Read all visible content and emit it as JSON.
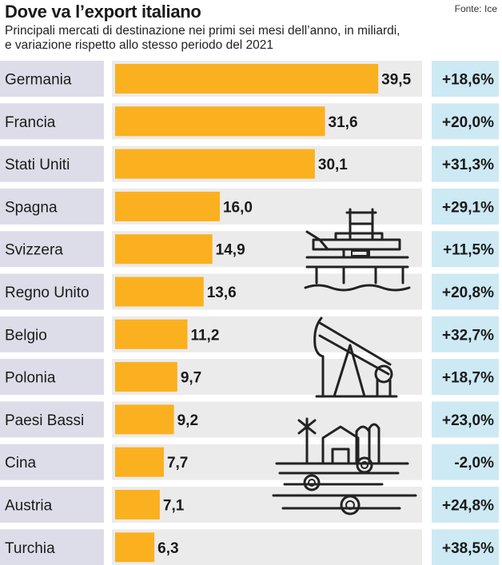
{
  "header": {
    "title": "Dove va l’export italiano",
    "source": "Fonte: Ice",
    "subtitle_line1": "Principali mercati di destinazione nei primi sei mesi dell’anno, in miliardi,",
    "subtitle_line2": "e variazione rispetto allo stesso periodo del 2021"
  },
  "colors": {
    "bar": "#fbb01f",
    "track": "#ebebeb",
    "label_bg": "#dddde9",
    "pct_bg": "#cde9f4"
  },
  "chart_data": {
    "type": "bar",
    "orientation": "horizontal",
    "categories": [
      "Germania",
      "Francia",
      "Stati Uniti",
      "Spagna",
      "Svizzera",
      "Regno Unito",
      "Belgio",
      "Polonia",
      "Paesi Bassi",
      "Cina",
      "Austria",
      "Turchia"
    ],
    "values": [
      39.5,
      31.6,
      30.1,
      16.0,
      14.9,
      13.6,
      11.2,
      9.7,
      9.2,
      7.7,
      7.1,
      6.3
    ],
    "value_labels": [
      "39,5",
      "31,6",
      "30,1",
      "16,0",
      "14,9",
      "13,6",
      "11,2",
      "9,7",
      "9,2",
      "7,7",
      "7,1",
      "6,3"
    ],
    "changes": [
      "+18,6%",
      "+20,0%",
      "+31,3%",
      "+29,1%",
      "+11,5%",
      "+20,8%",
      "+32,7%",
      "+18,7%",
      "+23,0%",
      "-2,0%",
      "+24,8%",
      "+38,5%"
    ],
    "xlim": [
      0,
      46
    ]
  },
  "illustrations": {
    "icons": [
      "oil-platform-icon",
      "oil-pump-icon",
      "farm-icon"
    ]
  }
}
